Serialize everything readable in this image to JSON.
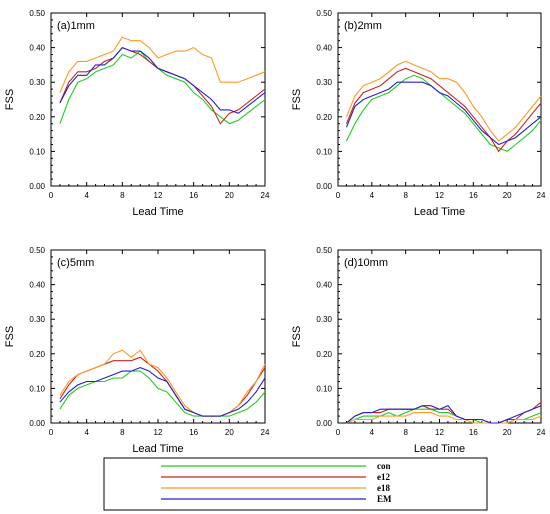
{
  "chart_data": [
    {
      "type": "line",
      "title": "(a)1mm",
      "xlabel": "Lead Time",
      "ylabel": "FSS",
      "xlim": [
        0,
        24
      ],
      "ylim": [
        0,
        0.5
      ],
      "xticks": [
        "0",
        "4",
        "8",
        "12",
        "16",
        "20",
        "24"
      ],
      "yticks": [
        "0.00",
        "0.10",
        "0.20",
        "0.30",
        "0.40",
        "0.50"
      ],
      "x": [
        1,
        2,
        3,
        4,
        5,
        6,
        7,
        8,
        9,
        10,
        11,
        12,
        13,
        14,
        15,
        16,
        17,
        18,
        19,
        20,
        21,
        22,
        23,
        24
      ],
      "series": [
        {
          "name": "con",
          "color": "#22cc22",
          "values": [
            0.18,
            0.25,
            0.3,
            0.31,
            0.33,
            0.34,
            0.35,
            0.38,
            0.37,
            0.39,
            0.36,
            0.34,
            0.32,
            0.31,
            0.3,
            0.27,
            0.25,
            0.22,
            0.2,
            0.18,
            0.19,
            0.21,
            0.23,
            0.25
          ]
        },
        {
          "name": "e12",
          "color": "#cc2222",
          "values": [
            0.24,
            0.3,
            0.33,
            0.33,
            0.34,
            0.36,
            0.37,
            0.4,
            0.39,
            0.38,
            0.36,
            0.34,
            0.33,
            0.32,
            0.31,
            0.29,
            0.26,
            0.23,
            0.18,
            0.21,
            0.22,
            0.24,
            0.26,
            0.28
          ]
        },
        {
          "name": "e18",
          "color": "#ff9922",
          "values": [
            0.27,
            0.33,
            0.36,
            0.36,
            0.37,
            0.38,
            0.39,
            0.43,
            0.42,
            0.42,
            0.4,
            0.37,
            0.38,
            0.39,
            0.39,
            0.4,
            0.38,
            0.37,
            0.3,
            0.3,
            0.3,
            0.31,
            0.32,
            0.33
          ]
        },
        {
          "name": "EM",
          "color": "#2222cc",
          "values": [
            0.24,
            0.29,
            0.32,
            0.32,
            0.35,
            0.35,
            0.37,
            0.4,
            0.39,
            0.39,
            0.37,
            0.34,
            0.33,
            0.32,
            0.31,
            0.29,
            0.27,
            0.25,
            0.22,
            0.22,
            0.21,
            0.23,
            0.25,
            0.27
          ]
        }
      ]
    },
    {
      "type": "line",
      "title": "(b)2mm",
      "xlabel": "Lead Time",
      "ylabel": "FSS",
      "xlim": [
        0,
        24
      ],
      "ylim": [
        0,
        0.5
      ],
      "xticks": [
        "0",
        "4",
        "8",
        "12",
        "16",
        "20",
        "24"
      ],
      "yticks": [
        "0.00",
        "0.10",
        "0.20",
        "0.30",
        "0.40",
        "0.50"
      ],
      "x": [
        1,
        2,
        3,
        4,
        5,
        6,
        7,
        8,
        9,
        10,
        11,
        12,
        13,
        14,
        15,
        16,
        17,
        18,
        19,
        20,
        21,
        22,
        23,
        24
      ],
      "series": [
        {
          "name": "con",
          "color": "#22cc22",
          "values": [
            0.13,
            0.18,
            0.22,
            0.25,
            0.26,
            0.27,
            0.29,
            0.31,
            0.32,
            0.31,
            0.29,
            0.27,
            0.25,
            0.23,
            0.21,
            0.18,
            0.15,
            0.12,
            0.11,
            0.1,
            0.12,
            0.14,
            0.16,
            0.19
          ]
        },
        {
          "name": "e12",
          "color": "#cc2222",
          "values": [
            0.18,
            0.24,
            0.27,
            0.28,
            0.29,
            0.31,
            0.33,
            0.34,
            0.33,
            0.32,
            0.31,
            0.29,
            0.27,
            0.25,
            0.23,
            0.2,
            0.17,
            0.14,
            0.1,
            0.13,
            0.15,
            0.18,
            0.21,
            0.24
          ]
        },
        {
          "name": "e18",
          "color": "#ff9922",
          "values": [
            0.2,
            0.26,
            0.29,
            0.3,
            0.31,
            0.33,
            0.35,
            0.36,
            0.35,
            0.34,
            0.33,
            0.31,
            0.31,
            0.3,
            0.27,
            0.23,
            0.2,
            0.16,
            0.13,
            0.15,
            0.17,
            0.2,
            0.23,
            0.26
          ]
        },
        {
          "name": "EM",
          "color": "#2222cc",
          "values": [
            0.17,
            0.23,
            0.25,
            0.26,
            0.27,
            0.28,
            0.3,
            0.3,
            0.3,
            0.3,
            0.29,
            0.27,
            0.26,
            0.24,
            0.22,
            0.19,
            0.16,
            0.14,
            0.12,
            0.13,
            0.14,
            0.16,
            0.18,
            0.2
          ]
        }
      ]
    },
    {
      "type": "line",
      "title": "(c)5mm",
      "xlabel": "Lead Time",
      "ylabel": "FSS",
      "xlim": [
        0,
        24
      ],
      "ylim": [
        0,
        0.5
      ],
      "xticks": [
        "0",
        "4",
        "8",
        "12",
        "16",
        "20",
        "24"
      ],
      "yticks": [
        "0.00",
        "0.10",
        "0.20",
        "0.30",
        "0.40",
        "0.50"
      ],
      "x": [
        1,
        2,
        3,
        4,
        5,
        6,
        7,
        8,
        9,
        10,
        11,
        12,
        13,
        14,
        15,
        16,
        17,
        18,
        19,
        20,
        21,
        22,
        23,
        24
      ],
      "series": [
        {
          "name": "con",
          "color": "#22cc22",
          "values": [
            0.04,
            0.08,
            0.1,
            0.11,
            0.12,
            0.12,
            0.13,
            0.13,
            0.15,
            0.15,
            0.13,
            0.1,
            0.09,
            0.06,
            0.03,
            0.02,
            0.02,
            0.02,
            0.02,
            0.02,
            0.03,
            0.04,
            0.06,
            0.09
          ]
        },
        {
          "name": "e12",
          "color": "#cc2222",
          "values": [
            0.07,
            0.11,
            0.14,
            0.15,
            0.16,
            0.17,
            0.18,
            0.18,
            0.18,
            0.19,
            0.17,
            0.15,
            0.12,
            0.08,
            0.04,
            0.03,
            0.02,
            0.02,
            0.02,
            0.03,
            0.05,
            0.08,
            0.12,
            0.16
          ]
        },
        {
          "name": "e18",
          "color": "#ff9922",
          "values": [
            0.08,
            0.12,
            0.14,
            0.15,
            0.16,
            0.17,
            0.2,
            0.21,
            0.19,
            0.21,
            0.17,
            0.16,
            0.13,
            0.09,
            0.05,
            0.03,
            0.02,
            0.02,
            0.02,
            0.03,
            0.05,
            0.09,
            0.12,
            0.17
          ]
        },
        {
          "name": "EM",
          "color": "#2222cc",
          "values": [
            0.06,
            0.09,
            0.11,
            0.12,
            0.12,
            0.13,
            0.14,
            0.15,
            0.15,
            0.16,
            0.15,
            0.13,
            0.12,
            0.08,
            0.04,
            0.03,
            0.02,
            0.02,
            0.02,
            0.03,
            0.04,
            0.06,
            0.09,
            0.13
          ]
        }
      ]
    },
    {
      "type": "line",
      "title": "(d)10mm",
      "xlabel": "Lead Time",
      "ylabel": "FSS",
      "xlim": [
        0,
        24
      ],
      "ylim": [
        0,
        0.5
      ],
      "xticks": [
        "0",
        "4",
        "8",
        "12",
        "16",
        "20",
        "24"
      ],
      "yticks": [
        "0.00",
        "0.10",
        "0.20",
        "0.30",
        "0.40",
        "0.50"
      ],
      "x": [
        1,
        2,
        3,
        4,
        5,
        6,
        7,
        8,
        9,
        10,
        11,
        12,
        13,
        14,
        15,
        16,
        17,
        18,
        19,
        20,
        21,
        22,
        23,
        24
      ],
      "series": [
        {
          "name": "con",
          "color": "#22cc22",
          "values": [
            0.0,
            0.01,
            0.02,
            0.02,
            0.02,
            0.03,
            0.02,
            0.03,
            0.04,
            0.04,
            0.04,
            0.03,
            0.03,
            0.02,
            0.01,
            0.01,
            0.0,
            0.0,
            0.0,
            0.0,
            0.01,
            0.01,
            0.02,
            0.03
          ]
        },
        {
          "name": "e12",
          "color": "#cc2222",
          "values": [
            0.0,
            0.02,
            0.03,
            0.03,
            0.03,
            0.04,
            0.04,
            0.04,
            0.04,
            0.05,
            0.04,
            0.04,
            0.04,
            0.02,
            0.01,
            0.01,
            0.01,
            0.0,
            0.0,
            0.01,
            0.01,
            0.03,
            0.04,
            0.06
          ]
        },
        {
          "name": "e18",
          "color": "#ff9922",
          "values": [
            0.0,
            0.01,
            0.01,
            0.01,
            0.02,
            0.02,
            0.02,
            0.02,
            0.03,
            0.03,
            0.03,
            0.02,
            0.02,
            0.01,
            0.01,
            0.0,
            0.0,
            0.0,
            0.0,
            0.0,
            0.01,
            0.01,
            0.01,
            0.02
          ]
        },
        {
          "name": "EM",
          "color": "#2222cc",
          "values": [
            0.0,
            0.02,
            0.03,
            0.03,
            0.04,
            0.04,
            0.04,
            0.04,
            0.04,
            0.05,
            0.05,
            0.04,
            0.05,
            0.02,
            0.01,
            0.01,
            0.01,
            0.0,
            0.0,
            0.01,
            0.02,
            0.03,
            0.04,
            0.05
          ]
        }
      ]
    }
  ],
  "legend": {
    "items": [
      {
        "label": "con",
        "color": "#22cc22"
      },
      {
        "label": "e12",
        "color": "#cc2222"
      },
      {
        "label": "e18",
        "color": "#ff9922"
      },
      {
        "label": "EM",
        "color": "#2222cc"
      }
    ]
  }
}
